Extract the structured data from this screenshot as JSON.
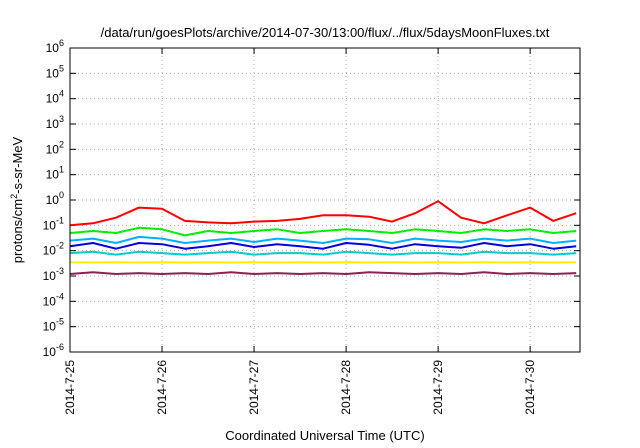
{
  "chart_data": {
    "type": "line",
    "title": "/data/run/goesPlots/archive/2014-07-30/13:00/flux/../flux/5daysMoonFluxes.txt",
    "xlabel": "Coordinated Universal Time (UTC)",
    "ylabel_parts": [
      "protons/cm",
      "2",
      "-s-sr-MeV"
    ],
    "yscale": "log",
    "ylim": [
      1e-06,
      1000000.0
    ],
    "xlim": [
      "2014-07-25",
      "2014-07-30T13:00"
    ],
    "x_tick_labels": [
      "2014-7-25",
      "2014-7-26",
      "2014-7-27",
      "2014-7-28",
      "2014-7-29",
      "2014-7-30"
    ],
    "y_tick_exponents": [
      "-6",
      "-5",
      "-4",
      "-3",
      "-2",
      "-1",
      "0",
      "1",
      "2",
      "3",
      "4",
      "5",
      "6"
    ],
    "grid": true,
    "x": [
      "2014-07-25T00:00",
      "2014-07-25T06:00",
      "2014-07-25T12:00",
      "2014-07-25T18:00",
      "2014-07-26T00:00",
      "2014-07-26T06:00",
      "2014-07-26T12:00",
      "2014-07-26T18:00",
      "2014-07-27T00:00",
      "2014-07-27T06:00",
      "2014-07-27T12:00",
      "2014-07-27T18:00",
      "2014-07-28T00:00",
      "2014-07-28T06:00",
      "2014-07-28T12:00",
      "2014-07-28T18:00",
      "2014-07-29T00:00",
      "2014-07-29T06:00",
      "2014-07-29T12:00",
      "2014-07-29T18:00",
      "2014-07-30T00:00",
      "2014-07-30T06:00",
      "2014-07-30T12:00"
    ],
    "series": [
      {
        "color": "#ff0000",
        "values": [
          0.1,
          0.12,
          0.2,
          0.5,
          0.45,
          0.15,
          0.13,
          0.12,
          0.14,
          0.15,
          0.18,
          0.25,
          0.25,
          0.22,
          0.14,
          0.3,
          0.9,
          0.2,
          0.12,
          0.25,
          0.5,
          0.15,
          0.3
        ]
      },
      {
        "color": "#00ee00",
        "values": [
          0.05,
          0.06,
          0.05,
          0.08,
          0.07,
          0.04,
          0.06,
          0.05,
          0.06,
          0.07,
          0.05,
          0.06,
          0.07,
          0.06,
          0.05,
          0.07,
          0.06,
          0.05,
          0.07,
          0.06,
          0.07,
          0.05,
          0.06
        ]
      },
      {
        "color": "#00b0ff",
        "values": [
          0.025,
          0.03,
          0.02,
          0.035,
          0.03,
          0.02,
          0.025,
          0.03,
          0.022,
          0.03,
          0.025,
          0.02,
          0.03,
          0.028,
          0.02,
          0.03,
          0.025,
          0.022,
          0.03,
          0.025,
          0.03,
          0.02,
          0.025
        ]
      },
      {
        "color": "#0000e0",
        "values": [
          0.015,
          0.02,
          0.012,
          0.02,
          0.018,
          0.012,
          0.015,
          0.02,
          0.014,
          0.018,
          0.015,
          0.012,
          0.02,
          0.017,
          0.012,
          0.018,
          0.015,
          0.013,
          0.02,
          0.015,
          0.018,
          0.012,
          0.015
        ]
      },
      {
        "color": "#00cccc",
        "values": [
          0.008,
          0.009,
          0.007,
          0.009,
          0.008,
          0.007,
          0.008,
          0.009,
          0.007,
          0.008,
          0.008,
          0.007,
          0.009,
          0.008,
          0.007,
          0.008,
          0.008,
          0.007,
          0.009,
          0.008,
          0.008,
          0.007,
          0.008
        ]
      },
      {
        "color": "#ffee00",
        "values": [
          0.0035,
          0.0034,
          0.0035,
          0.0034,
          0.0035,
          0.0034,
          0.0035,
          0.0034,
          0.0035,
          0.0034,
          0.0035,
          0.0034,
          0.0035,
          0.0034,
          0.0035,
          0.0034,
          0.0035,
          0.0034,
          0.0035,
          0.0034,
          0.0035,
          0.0034,
          0.0035
        ]
      },
      {
        "color": "#8b2252",
        "values": [
          0.0012,
          0.0014,
          0.0012,
          0.0013,
          0.0012,
          0.0013,
          0.0012,
          0.0014,
          0.0012,
          0.0013,
          0.0012,
          0.0013,
          0.0012,
          0.0014,
          0.0013,
          0.0012,
          0.0013,
          0.0012,
          0.0014,
          0.0012,
          0.0013,
          0.0012,
          0.0013
        ]
      }
    ]
  }
}
